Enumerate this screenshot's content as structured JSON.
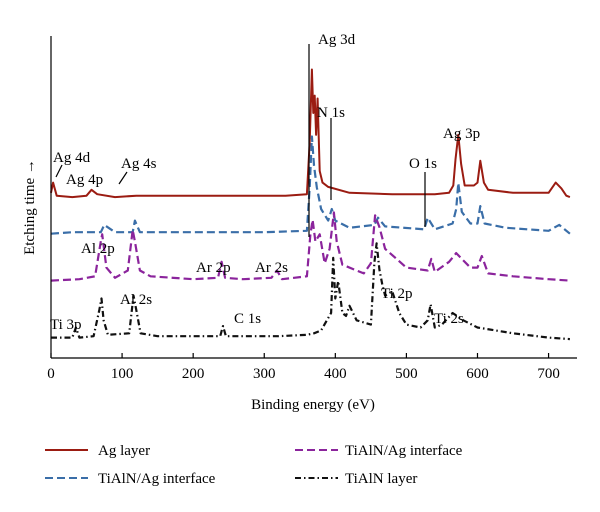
{
  "chart_data": {
    "type": "line",
    "title": "",
    "xlabel": "Binding energy (eV)",
    "ylabel": "Etching time →",
    "xlim": [
      0,
      740
    ],
    "xticks": [
      0,
      100,
      200,
      300,
      400,
      500,
      600,
      700
    ],
    "y_axis_values_shown": false,
    "legend_position": "bottom",
    "series": [
      {
        "name": "Ag layer",
        "color": "#9b1c12",
        "dash": "solid",
        "x": [
          0,
          3,
          8,
          30,
          50,
          57,
          65,
          90,
          120,
          250,
          330,
          360,
          364,
          367,
          369,
          371,
          373,
          375,
          378,
          382,
          390,
          420,
          480,
          540,
          560,
          566,
          569,
          573,
          577,
          582,
          595,
          600,
          604,
          609,
          615,
          650,
          700,
          710,
          718,
          725,
          730
        ],
        "y": [
          5,
          12,
          3,
          2,
          3,
          7,
          4,
          2,
          3,
          3,
          3,
          4,
          40,
          90,
          60,
          72,
          45,
          70,
          20,
          12,
          9,
          5,
          4,
          4,
          5,
          10,
          28,
          45,
          25,
          10,
          10,
          12,
          27,
          12,
          7,
          5,
          5,
          12,
          8,
          3,
          2
        ]
      },
      {
        "name": "TiAlN/Ag interface",
        "color": "#3a6ea8",
        "dash": "8,4",
        "x": [
          0,
          30,
          70,
          75,
          90,
          115,
          118,
          125,
          200,
          300,
          360,
          364,
          367,
          370,
          374,
          380,
          390,
          395,
          400,
          420,
          455,
          460,
          470,
          525,
          530,
          540,
          565,
          570,
          573,
          578,
          590,
          600,
          604,
          610,
          640,
          700,
          715,
          730
        ],
        "y": [
          3,
          4,
          4,
          9,
          4,
          4,
          12,
          4,
          4,
          4,
          5,
          35,
          70,
          50,
          35,
          20,
          12,
          20,
          12,
          7,
          9,
          14,
          8,
          6,
          14,
          6,
          10,
          20,
          38,
          18,
          10,
          10,
          22,
          10,
          7,
          5,
          9,
          3
        ]
      },
      {
        "name": "TiAlN/Ag interface",
        "color": "#8b249c",
        "dash": "8,4",
        "x": [
          0,
          40,
          62,
          70,
          72,
          78,
          90,
          108,
          115,
          118,
          125,
          140,
          200,
          235,
          240,
          245,
          270,
          310,
          318,
          325,
          360,
          365,
          368,
          372,
          378,
          385,
          392,
          398,
          402,
          410,
          440,
          450,
          456,
          462,
          470,
          500,
          530,
          535,
          540,
          560,
          570,
          578,
          590,
          600,
          606,
          615,
          650,
          700,
          730
        ],
        "y": [
          3,
          4,
          6,
          30,
          35,
          12,
          5,
          10,
          38,
          30,
          10,
          6,
          4,
          5,
          16,
          5,
          4,
          5,
          10,
          4,
          6,
          35,
          45,
          30,
          35,
          15,
          25,
          50,
          30,
          14,
          8,
          15,
          48,
          40,
          25,
          12,
          10,
          18,
          9,
          16,
          22,
          18,
          12,
          12,
          20,
          8,
          6,
          4,
          3
        ]
      },
      {
        "name": "TiAlN layer",
        "color": "#111111",
        "dash": "6,3,1.5,3",
        "x": [
          0,
          30,
          35,
          40,
          60,
          68,
          71,
          74,
          80,
          110,
          116,
          120,
          126,
          150,
          200,
          238,
          242,
          246,
          270,
          320,
          360,
          370,
          380,
          394,
          397,
          400,
          404,
          410,
          415,
          420,
          430,
          450,
          455,
          458,
          462,
          466,
          470,
          480,
          490,
          500,
          520,
          530,
          534,
          540,
          550,
          565,
          580,
          600,
          650,
          700,
          730
        ],
        "y": [
          3,
          3,
          10,
          3,
          4,
          22,
          30,
          15,
          5,
          6,
          32,
          22,
          6,
          4,
          4,
          4,
          11,
          4,
          4,
          4,
          5,
          6,
          8,
          20,
          58,
          30,
          42,
          20,
          18,
          25,
          15,
          12,
          55,
          68,
          50,
          40,
          32,
          35,
          20,
          12,
          10,
          15,
          26,
          10,
          12,
          20,
          15,
          10,
          6,
          3,
          2
        ]
      }
    ],
    "annotations": [
      {
        "text": "Ag 3d",
        "x": 366
      },
      {
        "text": "N 1s",
        "x": 396
      },
      {
        "text": "Ag 3p",
        "x": 573
      },
      {
        "text": "O 1s",
        "x": 530
      },
      {
        "text": "Ag 4d",
        "x": 4
      },
      {
        "text": "Ag 4p",
        "x": 55
      },
      {
        "text": "Ag 4s",
        "x": 100
      },
      {
        "text": "Al 2p",
        "x": 72
      },
      {
        "text": "Ar 2p",
        "x": 242
      },
      {
        "text": "Ar 2s",
        "x": 320
      },
      {
        "text": "Al 2s",
        "x": 116
      },
      {
        "text": "Ti 3p",
        "x": 35
      },
      {
        "text": "C 1s",
        "x": 285
      },
      {
        "text": "Ti 2p",
        "x": 458
      },
      {
        "text": "Ti 2s",
        "x": 565
      }
    ]
  }
}
